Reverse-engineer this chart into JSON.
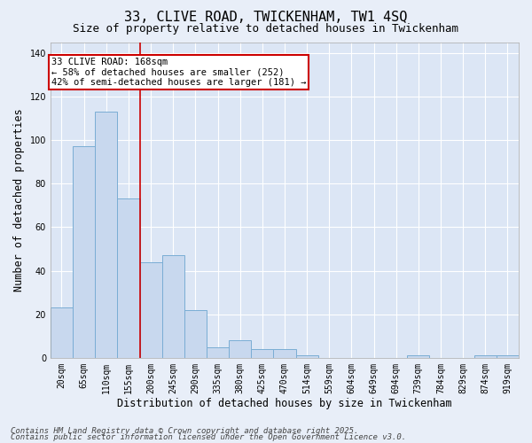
{
  "title1": "33, CLIVE ROAD, TWICKENHAM, TW1 4SQ",
  "title2": "Size of property relative to detached houses in Twickenham",
  "xlabel": "Distribution of detached houses by size in Twickenham",
  "ylabel": "Number of detached properties",
  "categories": [
    "20sqm",
    "65sqm",
    "110sqm",
    "155sqm",
    "200sqm",
    "245sqm",
    "290sqm",
    "335sqm",
    "380sqm",
    "425sqm",
    "470sqm",
    "514sqm",
    "559sqm",
    "604sqm",
    "649sqm",
    "694sqm",
    "739sqm",
    "784sqm",
    "829sqm",
    "874sqm",
    "919sqm"
  ],
  "values": [
    23,
    97,
    113,
    73,
    44,
    47,
    22,
    5,
    8,
    4,
    4,
    1,
    0,
    0,
    0,
    0,
    1,
    0,
    0,
    1,
    1
  ],
  "bar_color": "#c8d8ee",
  "bar_edge_color": "#7aadd4",
  "vline_x": 3.5,
  "vline_color": "#cc0000",
  "annotation_title": "33 CLIVE ROAD: 168sqm",
  "annotation_line2": "← 58% of detached houses are smaller (252)",
  "annotation_line3": "42% of semi-detached houses are larger (181) →",
  "annotation_box_facecolor": "white",
  "annotation_box_edgecolor": "#cc0000",
  "ylim": [
    0,
    145
  ],
  "yticks": [
    0,
    20,
    40,
    60,
    80,
    100,
    120,
    140
  ],
  "footnote1": "Contains HM Land Registry data © Crown copyright and database right 2025.",
  "footnote2": "Contains public sector information licensed under the Open Government Licence v3.0.",
  "bg_color": "#e8eef8",
  "plot_bg_color": "#dce6f5",
  "grid_color": "#ffffff",
  "title_fontsize": 11,
  "subtitle_fontsize": 9,
  "axis_label_fontsize": 8.5,
  "tick_fontsize": 7,
  "annotation_fontsize": 7.5,
  "footnote_fontsize": 6.5
}
